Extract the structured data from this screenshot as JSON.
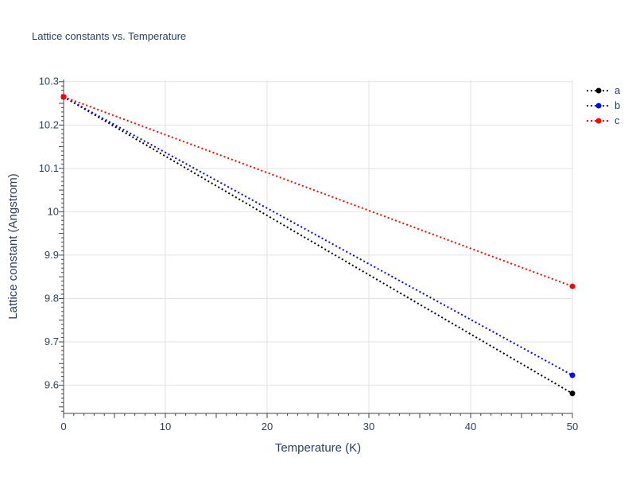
{
  "chart_data": {
    "type": "line",
    "title": "Lattice constants vs. Temperature",
    "xlabel": "Temperature (K)",
    "ylabel": "Lattice constant (Angstrom)",
    "xlim": [
      0,
      50
    ],
    "ylim": [
      9.535,
      10.305
    ],
    "x_ticks": [
      0,
      10,
      20,
      30,
      40,
      50
    ],
    "x_tick_labels": [
      "0",
      "10",
      "20",
      "30",
      "40",
      "50"
    ],
    "y_ticks": [
      9.6,
      9.7,
      9.8,
      9.9,
      10.0,
      10.1,
      10.2,
      10.3
    ],
    "y_tick_labels": [
      "9.6",
      "9.7",
      "9.8",
      "9.9",
      "10",
      "10.1",
      "10.2",
      "10.3"
    ],
    "grid": true,
    "legend_position": "top-right",
    "line_style": "dotted",
    "series": [
      {
        "name": "a",
        "color": "#000000",
        "x": [
          0,
          50
        ],
        "y": [
          10.265,
          9.581
        ]
      },
      {
        "name": "b",
        "color": "#0000ff",
        "x": [
          0,
          50
        ],
        "y": [
          10.265,
          9.623
        ]
      },
      {
        "name": "c",
        "color": "#ff0000",
        "x": [
          0,
          50
        ],
        "y": [
          10.265,
          9.828
        ]
      }
    ]
  }
}
